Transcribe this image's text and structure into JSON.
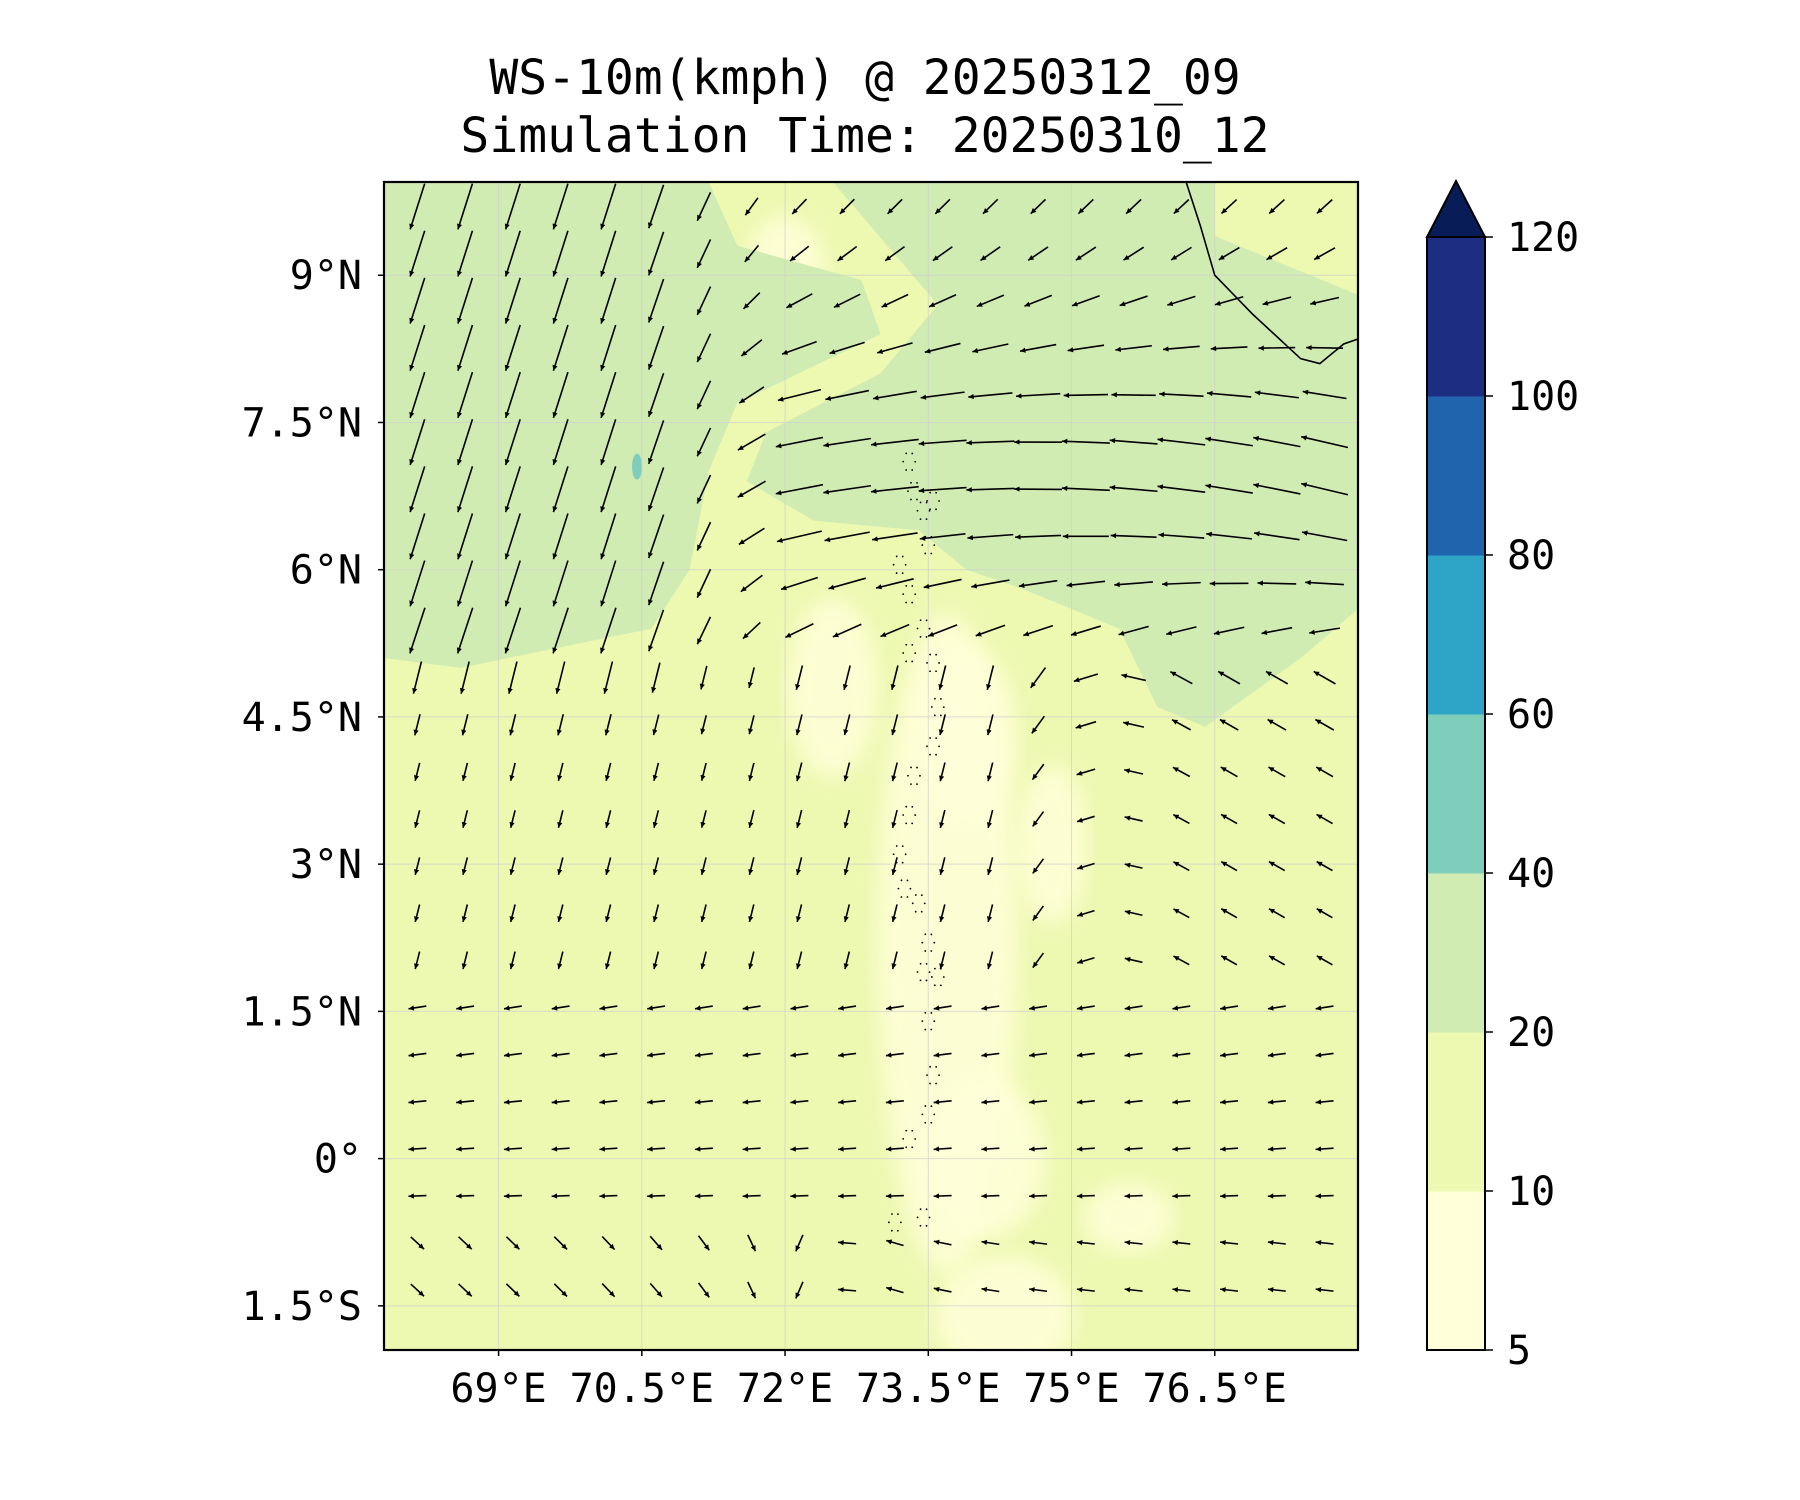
{
  "title": {
    "line1": "WS-10m(kmph) @ 20250312_09",
    "line2": "Simulation Time: 20250310_12"
  },
  "map": {
    "lon_range": [
      67.8,
      78.0
    ],
    "lat_range": [
      -1.95,
      9.95
    ],
    "x_ticks": [
      {
        "value": 69.0,
        "label": "69°E"
      },
      {
        "value": 70.5,
        "label": "70.5°E"
      },
      {
        "value": 72.0,
        "label": "72°E"
      },
      {
        "value": 73.5,
        "label": "73.5°E"
      },
      {
        "value": 75.0,
        "label": "75°E"
      },
      {
        "value": 76.5,
        "label": "76.5°E"
      }
    ],
    "y_ticks": [
      {
        "value": 9.0,
        "label": "9°N"
      },
      {
        "value": 7.5,
        "label": "7.5°N"
      },
      {
        "value": 6.0,
        "label": "6°N"
      },
      {
        "value": 4.5,
        "label": "4.5°N"
      },
      {
        "value": 3.0,
        "label": "3°N"
      },
      {
        "value": 1.5,
        "label": "1.5°N"
      },
      {
        "value": 0.0,
        "label": "0°"
      },
      {
        "value": -1.5,
        "label": "1.5°S"
      }
    ],
    "gridlines": true,
    "variable": "wind speed at 10 m",
    "units": "kmph"
  },
  "colorbar": {
    "levels": [
      5,
      10,
      20,
      40,
      60,
      80,
      100,
      120
    ],
    "tick_labels": [
      "5",
      "10",
      "20",
      "40",
      "60",
      "80",
      "100",
      "120"
    ],
    "colors": [
      "#ffffd9",
      "#edf8b1",
      "#d0ecb3",
      "#7fcdbb",
      "#2ea4c6",
      "#2064ad",
      "#1d2e82"
    ],
    "extend_color": "#081d58",
    "extend": "max"
  },
  "colors": {
    "coast": "#000000",
    "arrow": "#000000"
  }
}
